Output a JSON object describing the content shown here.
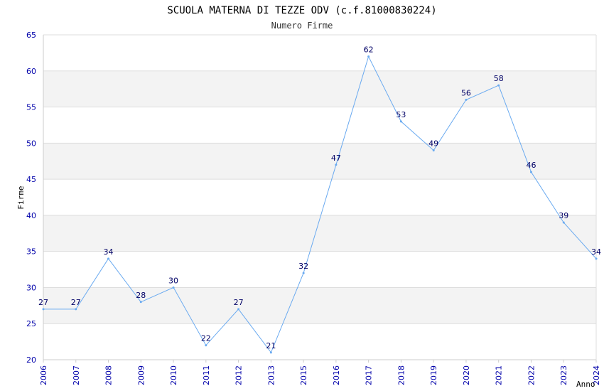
{
  "colors": {
    "line": "#6aaaf0",
    "band": "#f3f3f3",
    "grid": "#dddddd",
    "axis": "#cccccc",
    "tick_text": "#0000aa",
    "label_text": "#000066"
  },
  "chart_data": {
    "type": "line",
    "title": "SCUOLA MATERNA DI TEZZE ODV (c.f.81000830224)",
    "subtitle": "Numero Firme",
    "xlabel": "Anno",
    "ylabel": "Firme",
    "categories": [
      "2006",
      "2007",
      "2008",
      "2009",
      "2010",
      "2011",
      "2012",
      "2013",
      "2015",
      "2016",
      "2017",
      "2018",
      "2019",
      "2020",
      "2021",
      "2022",
      "2023",
      "2024"
    ],
    "series": [
      {
        "values": [
          27,
          27,
          34,
          28,
          30,
          22,
          27,
          21,
          32,
          47,
          62,
          53,
          49,
          56,
          58,
          46,
          39,
          34
        ]
      }
    ],
    "ylim": [
      20,
      65
    ],
    "yticks": [
      "20",
      "25",
      "30",
      "35",
      "40",
      "45",
      "50",
      "55",
      "60",
      "65"
    ],
    "grid": true,
    "legend": "none"
  }
}
